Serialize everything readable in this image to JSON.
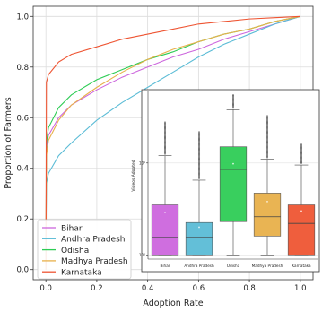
{
  "chart_data": [
    {
      "type": "line",
      "xlabel": "Adoption Rate",
      "ylabel": "Proportion of Farmers",
      "xlim": [
        -0.05,
        1.05
      ],
      "ylim": [
        -0.04,
        1.04
      ],
      "xticks": [
        0.0,
        0.2,
        0.4,
        0.6,
        0.8,
        1.0
      ],
      "xtick_labels": [
        "0.0",
        "0.2",
        "0.4",
        "0.6",
        "0.8",
        "1.0"
      ],
      "yticks": [
        0.0,
        0.2,
        0.4,
        0.6,
        0.8,
        1.0
      ],
      "ytick_labels": [
        "0.0",
        "0.2",
        "0.4",
        "0.6",
        "0.8",
        "1.0"
      ],
      "grid": true,
      "legend_position": "bottom-left",
      "series": [
        {
          "name": "Bihar",
          "color": "#cc66dd",
          "x": [
            0,
            0.002,
            0.01,
            0.05,
            0.1,
            0.2,
            0.3,
            0.4,
            0.5,
            0.6,
            0.7,
            0.8,
            0.9,
            1.0
          ],
          "y": [
            0.0,
            0.48,
            0.53,
            0.6,
            0.65,
            0.71,
            0.76,
            0.8,
            0.84,
            0.87,
            0.91,
            0.94,
            0.97,
            1.0
          ]
        },
        {
          "name": "Andhra Pradesh",
          "color": "#5bbcd6",
          "x": [
            0,
            0.002,
            0.01,
            0.05,
            0.1,
            0.2,
            0.3,
            0.4,
            0.5,
            0.6,
            0.7,
            0.8,
            0.9,
            1.0
          ],
          "y": [
            0.0,
            0.34,
            0.38,
            0.45,
            0.5,
            0.59,
            0.66,
            0.72,
            0.78,
            0.84,
            0.89,
            0.93,
            0.97,
            1.0
          ]
        },
        {
          "name": "Odisha",
          "color": "#2ecc55",
          "x": [
            0,
            0.002,
            0.01,
            0.05,
            0.1,
            0.2,
            0.3,
            0.4,
            0.5,
            0.6,
            0.7,
            0.8,
            0.9,
            1.0
          ],
          "y": [
            0.0,
            0.5,
            0.56,
            0.64,
            0.69,
            0.75,
            0.79,
            0.83,
            0.86,
            0.9,
            0.93,
            0.95,
            0.98,
            1.0
          ]
        },
        {
          "name": "Madhya Pradesh",
          "color": "#e8b04a",
          "x": [
            0,
            0.002,
            0.01,
            0.05,
            0.1,
            0.2,
            0.3,
            0.4,
            0.5,
            0.6,
            0.7,
            0.8,
            0.9,
            1.0
          ],
          "y": [
            0.0,
            0.45,
            0.51,
            0.59,
            0.65,
            0.72,
            0.78,
            0.83,
            0.87,
            0.9,
            0.93,
            0.95,
            0.98,
            1.0
          ]
        },
        {
          "name": "Karnataka",
          "color": "#ee5533",
          "x": [
            0,
            0.002,
            0.01,
            0.05,
            0.1,
            0.2,
            0.3,
            0.4,
            0.5,
            0.6,
            0.7,
            0.8,
            0.9,
            1.0
          ],
          "y": [
            0.0,
            0.74,
            0.77,
            0.82,
            0.85,
            0.88,
            0.91,
            0.93,
            0.95,
            0.97,
            0.98,
            0.99,
            0.995,
            1.0
          ]
        }
      ]
    },
    {
      "type": "box",
      "ylabel": "Videos Adopted",
      "yscale": "log",
      "ylim": [
        0.9,
        60
      ],
      "yticks": [
        1,
        10
      ],
      "categories": [
        "Bihar",
        "Andhra Pradesh",
        "Odisha",
        "Madhya Pradesh",
        "Karnataka"
      ],
      "boxes": [
        {
          "name": "Bihar",
          "color": "#cc66dd",
          "whislo": 1,
          "q1": 1,
          "median": 1.55,
          "q3": 3.5,
          "whishi": 12,
          "mean": 2.9,
          "outlier_max": 28
        },
        {
          "name": "Andhra Pradesh",
          "color": "#5bbcd6",
          "whislo": 1,
          "q1": 1,
          "median": 1.55,
          "q3": 2.25,
          "whishi": 6.5,
          "mean": 2.0,
          "outlier_max": 22
        },
        {
          "name": "Odisha",
          "color": "#2ecc55",
          "whislo": 1,
          "q1": 2.3,
          "median": 8.5,
          "q3": 15,
          "whishi": 38,
          "mean": 9.8,
          "outlier_max": 55
        },
        {
          "name": "Madhya Pradesh",
          "color": "#e8b04a",
          "whislo": 1,
          "q1": 1.6,
          "median": 2.6,
          "q3": 4.7,
          "whishi": 11,
          "mean": 3.8,
          "outlier_max": 33
        },
        {
          "name": "Karnataka",
          "color": "#ee5533",
          "whislo": 1,
          "q1": 1,
          "median": 2.2,
          "q3": 3.5,
          "whishi": 9.5,
          "mean": 3.0,
          "outlier_max": 16
        }
      ]
    }
  ]
}
